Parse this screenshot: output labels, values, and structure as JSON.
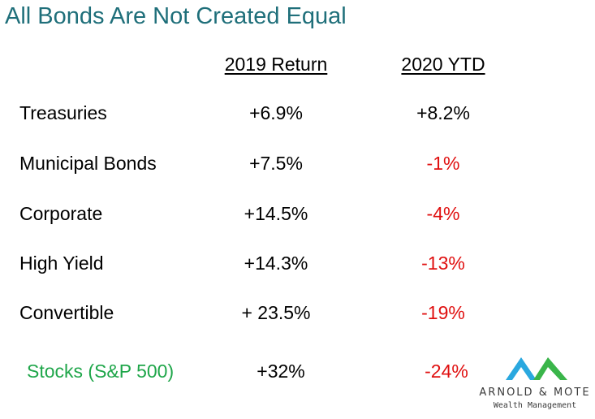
{
  "title": "All Bonds Are Not Created Equal",
  "columns": [
    "2019 Return",
    "2020 YTD"
  ],
  "rows": [
    {
      "label": "Treasuries",
      "return_2019": "+6.9%",
      "ytd_2020": "+8.2%"
    },
    {
      "label": "Municipal Bonds",
      "return_2019": "+7.5%",
      "ytd_2020": "-1%"
    },
    {
      "label": "Corporate",
      "return_2019": "+14.5%",
      "ytd_2020": "-4%"
    },
    {
      "label": "High Yield",
      "return_2019": "+14.3%",
      "ytd_2020": "-13%"
    },
    {
      "label": "Convertible",
      "return_2019": "+ 23.5%",
      "ytd_2020": "-19%"
    },
    {
      "label": "Stocks (S&P 500)",
      "return_2019": "+32%",
      "ytd_2020": "-24%"
    }
  ],
  "logo": {
    "brand": "ARNOLD & MOTE",
    "tagline": "Wealth Management",
    "colors": {
      "blue": "#2aa8df",
      "green": "#3ab54a"
    }
  },
  "colors": {
    "title": "#1f6f7a",
    "negative": "#e01010",
    "stocks_label": "#1fa64a"
  }
}
